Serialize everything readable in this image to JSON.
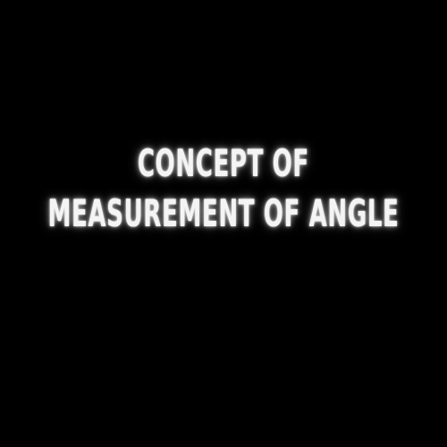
{
  "title": {
    "line1": "CONCEPT OF",
    "line2": "MEASUREMENT OF ANGLE"
  },
  "colors": {
    "background": "#000000",
    "text": "#f4f4f4",
    "glow": "#ffffff"
  }
}
